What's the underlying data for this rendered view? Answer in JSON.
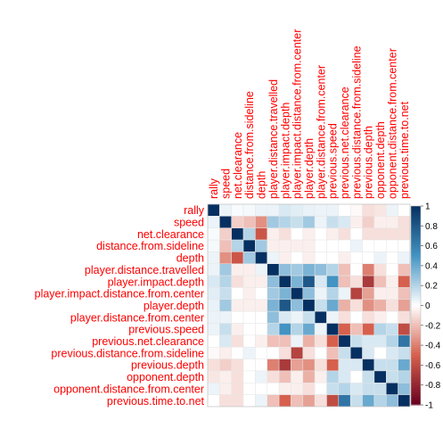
{
  "chart_data": {
    "type": "heatmap",
    "variables": [
      "rally",
      "speed",
      "net.clearance",
      "distance.from.sideline",
      "depth",
      "player.distance.travelled",
      "player.impact.depth",
      "player.impact.distance.from.center",
      "player.depth",
      "player.distance.from.center",
      "previous.speed",
      "previous.net.clearance",
      "previous.distance.from.sideline",
      "previous.depth",
      "opponent.depth",
      "opponent.distance.from.center",
      "previous.time.to.net"
    ],
    "matrix": [
      [
        1.0,
        0.05,
        0.02,
        0.03,
        0.05,
        0.05,
        0.1,
        0.08,
        0.06,
        0.05,
        0.05,
        0.0,
        -0.02,
        -0.1,
        -0.08,
        0.05,
        0.0
      ],
      [
        0.05,
        1.0,
        -0.15,
        -0.2,
        -0.35,
        0.25,
        0.2,
        0.15,
        0.25,
        0.05,
        0.15,
        0.1,
        -0.05,
        -0.15,
        -0.05,
        -0.05,
        -0.1
      ],
      [
        0.02,
        -0.15,
        1.0,
        0.2,
        -0.55,
        -0.05,
        -0.1,
        0.0,
        -0.05,
        0.0,
        -0.05,
        -0.1,
        0.0,
        -0.1,
        -0.1,
        -0.1,
        -0.1
      ],
      [
        0.03,
        -0.2,
        0.2,
        1.0,
        0.25,
        -0.05,
        -0.05,
        -0.05,
        -0.05,
        0.0,
        0.0,
        0.0,
        0.05,
        0.0,
        0.0,
        0.0,
        0.0
      ],
      [
        0.05,
        -0.35,
        -0.55,
        0.25,
        1.0,
        0.05,
        -0.05,
        0.0,
        -0.05,
        0.0,
        0.0,
        -0.05,
        0.0,
        0.0,
        0.05,
        0.0,
        0.05
      ],
      [
        0.05,
        0.25,
        -0.05,
        -0.05,
        0.05,
        1.0,
        0.3,
        0.25,
        0.35,
        0.3,
        0.2,
        -0.2,
        0.0,
        -0.4,
        -0.1,
        0.0,
        -0.2
      ],
      [
        0.1,
        0.2,
        -0.1,
        -0.05,
        -0.05,
        0.3,
        1.0,
        0.35,
        0.8,
        0.1,
        0.5,
        -0.2,
        -0.1,
        -0.7,
        -0.2,
        -0.05,
        -0.5
      ],
      [
        0.08,
        0.15,
        0.0,
        -0.05,
        0.0,
        0.25,
        0.35,
        1.0,
        0.3,
        0.05,
        0.2,
        0.05,
        -0.65,
        -0.3,
        -0.05,
        -0.05,
        -0.2
      ],
      [
        0.06,
        0.25,
        -0.05,
        -0.05,
        -0.05,
        0.35,
        0.8,
        0.3,
        1.0,
        0.15,
        0.4,
        -0.25,
        -0.1,
        -0.35,
        -0.25,
        -0.1,
        -0.3
      ],
      [
        0.05,
        0.05,
        0.0,
        0.0,
        0.0,
        0.3,
        0.1,
        0.05,
        0.15,
        1.0,
        0.05,
        -0.1,
        0.0,
        -0.1,
        -0.05,
        0.0,
        -0.1
      ],
      [
        0.05,
        0.15,
        -0.05,
        0.0,
        0.0,
        0.2,
        0.5,
        0.2,
        0.4,
        0.05,
        1.0,
        -0.5,
        -0.2,
        -0.5,
        0.2,
        0.15,
        -0.6
      ],
      [
        0.0,
        0.1,
        -0.1,
        0.0,
        -0.05,
        -0.2,
        -0.2,
        0.05,
        -0.25,
        -0.1,
        -0.5,
        1.0,
        0.15,
        0.1,
        0.1,
        0.2,
        0.65
      ],
      [
        -0.02,
        -0.05,
        0.0,
        0.05,
        0.0,
        0.0,
        -0.1,
        -0.65,
        -0.1,
        0.0,
        -0.2,
        0.15,
        1.0,
        0.1,
        0.0,
        0.1,
        0.15
      ],
      [
        -0.1,
        -0.15,
        -0.1,
        0.0,
        0.0,
        -0.4,
        -0.7,
        -0.3,
        -0.35,
        -0.1,
        -0.5,
        0.1,
        0.1,
        1.0,
        0.15,
        0.15,
        0.4
      ],
      [
        -0.08,
        -0.05,
        -0.1,
        0.0,
        0.05,
        -0.1,
        -0.2,
        -0.05,
        -0.25,
        -0.05,
        0.2,
        0.1,
        0.0,
        0.15,
        1.0,
        0.15,
        0.2
      ],
      [
        0.05,
        -0.05,
        -0.1,
        0.0,
        0.0,
        0.0,
        -0.05,
        -0.05,
        -0.1,
        0.0,
        0.15,
        0.2,
        0.1,
        0.15,
        0.15,
        1.0,
        0.3
      ],
      [
        0.0,
        -0.1,
        -0.1,
        0.0,
        0.05,
        -0.2,
        -0.5,
        -0.2,
        -0.3,
        -0.1,
        -0.6,
        0.65,
        0.15,
        0.4,
        0.2,
        0.3,
        1.0
      ]
    ],
    "colorbar_ticks": [
      "1",
      "0.8",
      "0.6",
      "0.4",
      "0.2",
      "0",
      "-0.2",
      "-0.4",
      "-0.6",
      "-0.8",
      "-1"
    ],
    "clim": [
      -1,
      1
    ],
    "colors": {
      "negative_extreme": "#67001f",
      "negative_mid": "#d6604d",
      "neutral": "#ffffff",
      "positive_mid": "#4393c3",
      "positive_extreme": "#053061",
      "label": "#ff0000"
    },
    "legend": "right",
    "title": "",
    "xlabel": "",
    "ylabel": ""
  }
}
